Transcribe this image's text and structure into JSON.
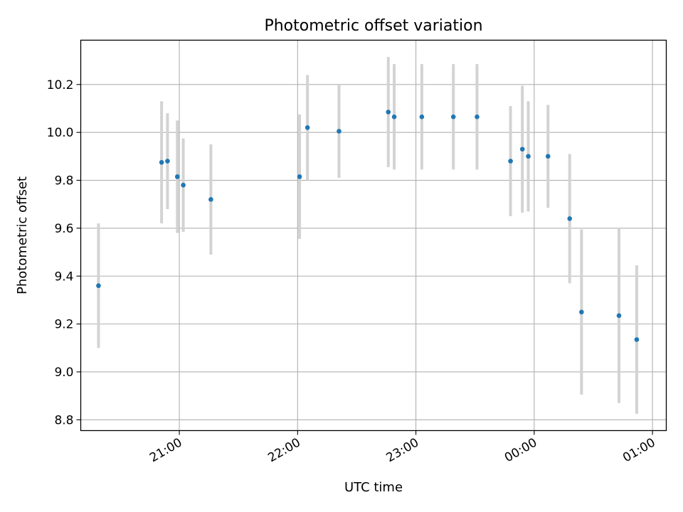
{
  "chart_data": {
    "type": "scatter",
    "title": "Photometric offset variation",
    "xlabel": "UTC time",
    "ylabel": "Photometric offset",
    "x_unit": "UTC time of night, HH:MM (after midnight times written past 24:00)",
    "xlim": [
      "20:10",
      "25:07"
    ],
    "ylim": [
      8.755,
      10.385
    ],
    "grid": true,
    "x_ticks": [
      {
        "value": "21:00",
        "label": "21:00"
      },
      {
        "value": "22:00",
        "label": "22:00"
      },
      {
        "value": "23:00",
        "label": "23:00"
      },
      {
        "value": "24:00",
        "label": "00:00"
      },
      {
        "value": "25:00",
        "label": "01:00"
      }
    ],
    "y_ticks": [
      {
        "value": 8.8,
        "label": "8.8"
      },
      {
        "value": 9.0,
        "label": "9.0"
      },
      {
        "value": 9.2,
        "label": "9.2"
      },
      {
        "value": 9.4,
        "label": "9.4"
      },
      {
        "value": 9.6,
        "label": "9.6"
      },
      {
        "value": 9.8,
        "label": "9.8"
      },
      {
        "value": 10.0,
        "label": "10.0"
      },
      {
        "value": 10.2,
        "label": "10.2"
      }
    ],
    "colors": {
      "points": "#1f77b4",
      "error_bars": "#d3d3d3",
      "grid": "#b0b0b0"
    },
    "points": [
      {
        "x": "20:19",
        "y": 9.36,
        "err": 0.26
      },
      {
        "x": "20:51",
        "y": 9.875,
        "err": 0.255
      },
      {
        "x": "20:54",
        "y": 9.88,
        "err": 0.2
      },
      {
        "x": "20:59",
        "y": 9.815,
        "err": 0.235
      },
      {
        "x": "21:02",
        "y": 9.78,
        "err": 0.195
      },
      {
        "x": "21:16",
        "y": 9.72,
        "err": 0.23
      },
      {
        "x": "22:01",
        "y": 9.815,
        "err": 0.26
      },
      {
        "x": "22:05",
        "y": 10.02,
        "err": 0.22
      },
      {
        "x": "22:21",
        "y": 10.005,
        "err": 0.195
      },
      {
        "x": "22:46",
        "y": 10.085,
        "err": 0.23
      },
      {
        "x": "22:49",
        "y": 10.065,
        "err": 0.22
      },
      {
        "x": "23:03",
        "y": 10.065,
        "err": 0.22
      },
      {
        "x": "23:19",
        "y": 10.065,
        "err": 0.22
      },
      {
        "x": "23:31",
        "y": 10.065,
        "err": 0.22
      },
      {
        "x": "23:48",
        "y": 9.88,
        "err": 0.23
      },
      {
        "x": "23:54",
        "y": 9.93,
        "err": 0.265
      },
      {
        "x": "23:57",
        "y": 9.9,
        "err": 0.23
      },
      {
        "x": "24:07",
        "y": 9.9,
        "err": 0.215
      },
      {
        "x": "24:18",
        "y": 9.64,
        "err": 0.27
      },
      {
        "x": "24:24",
        "y": 9.25,
        "err": 0.345
      },
      {
        "x": "24:43",
        "y": 9.235,
        "err": 0.365
      },
      {
        "x": "24:52",
        "y": 9.135,
        "err": 0.31
      }
    ]
  }
}
